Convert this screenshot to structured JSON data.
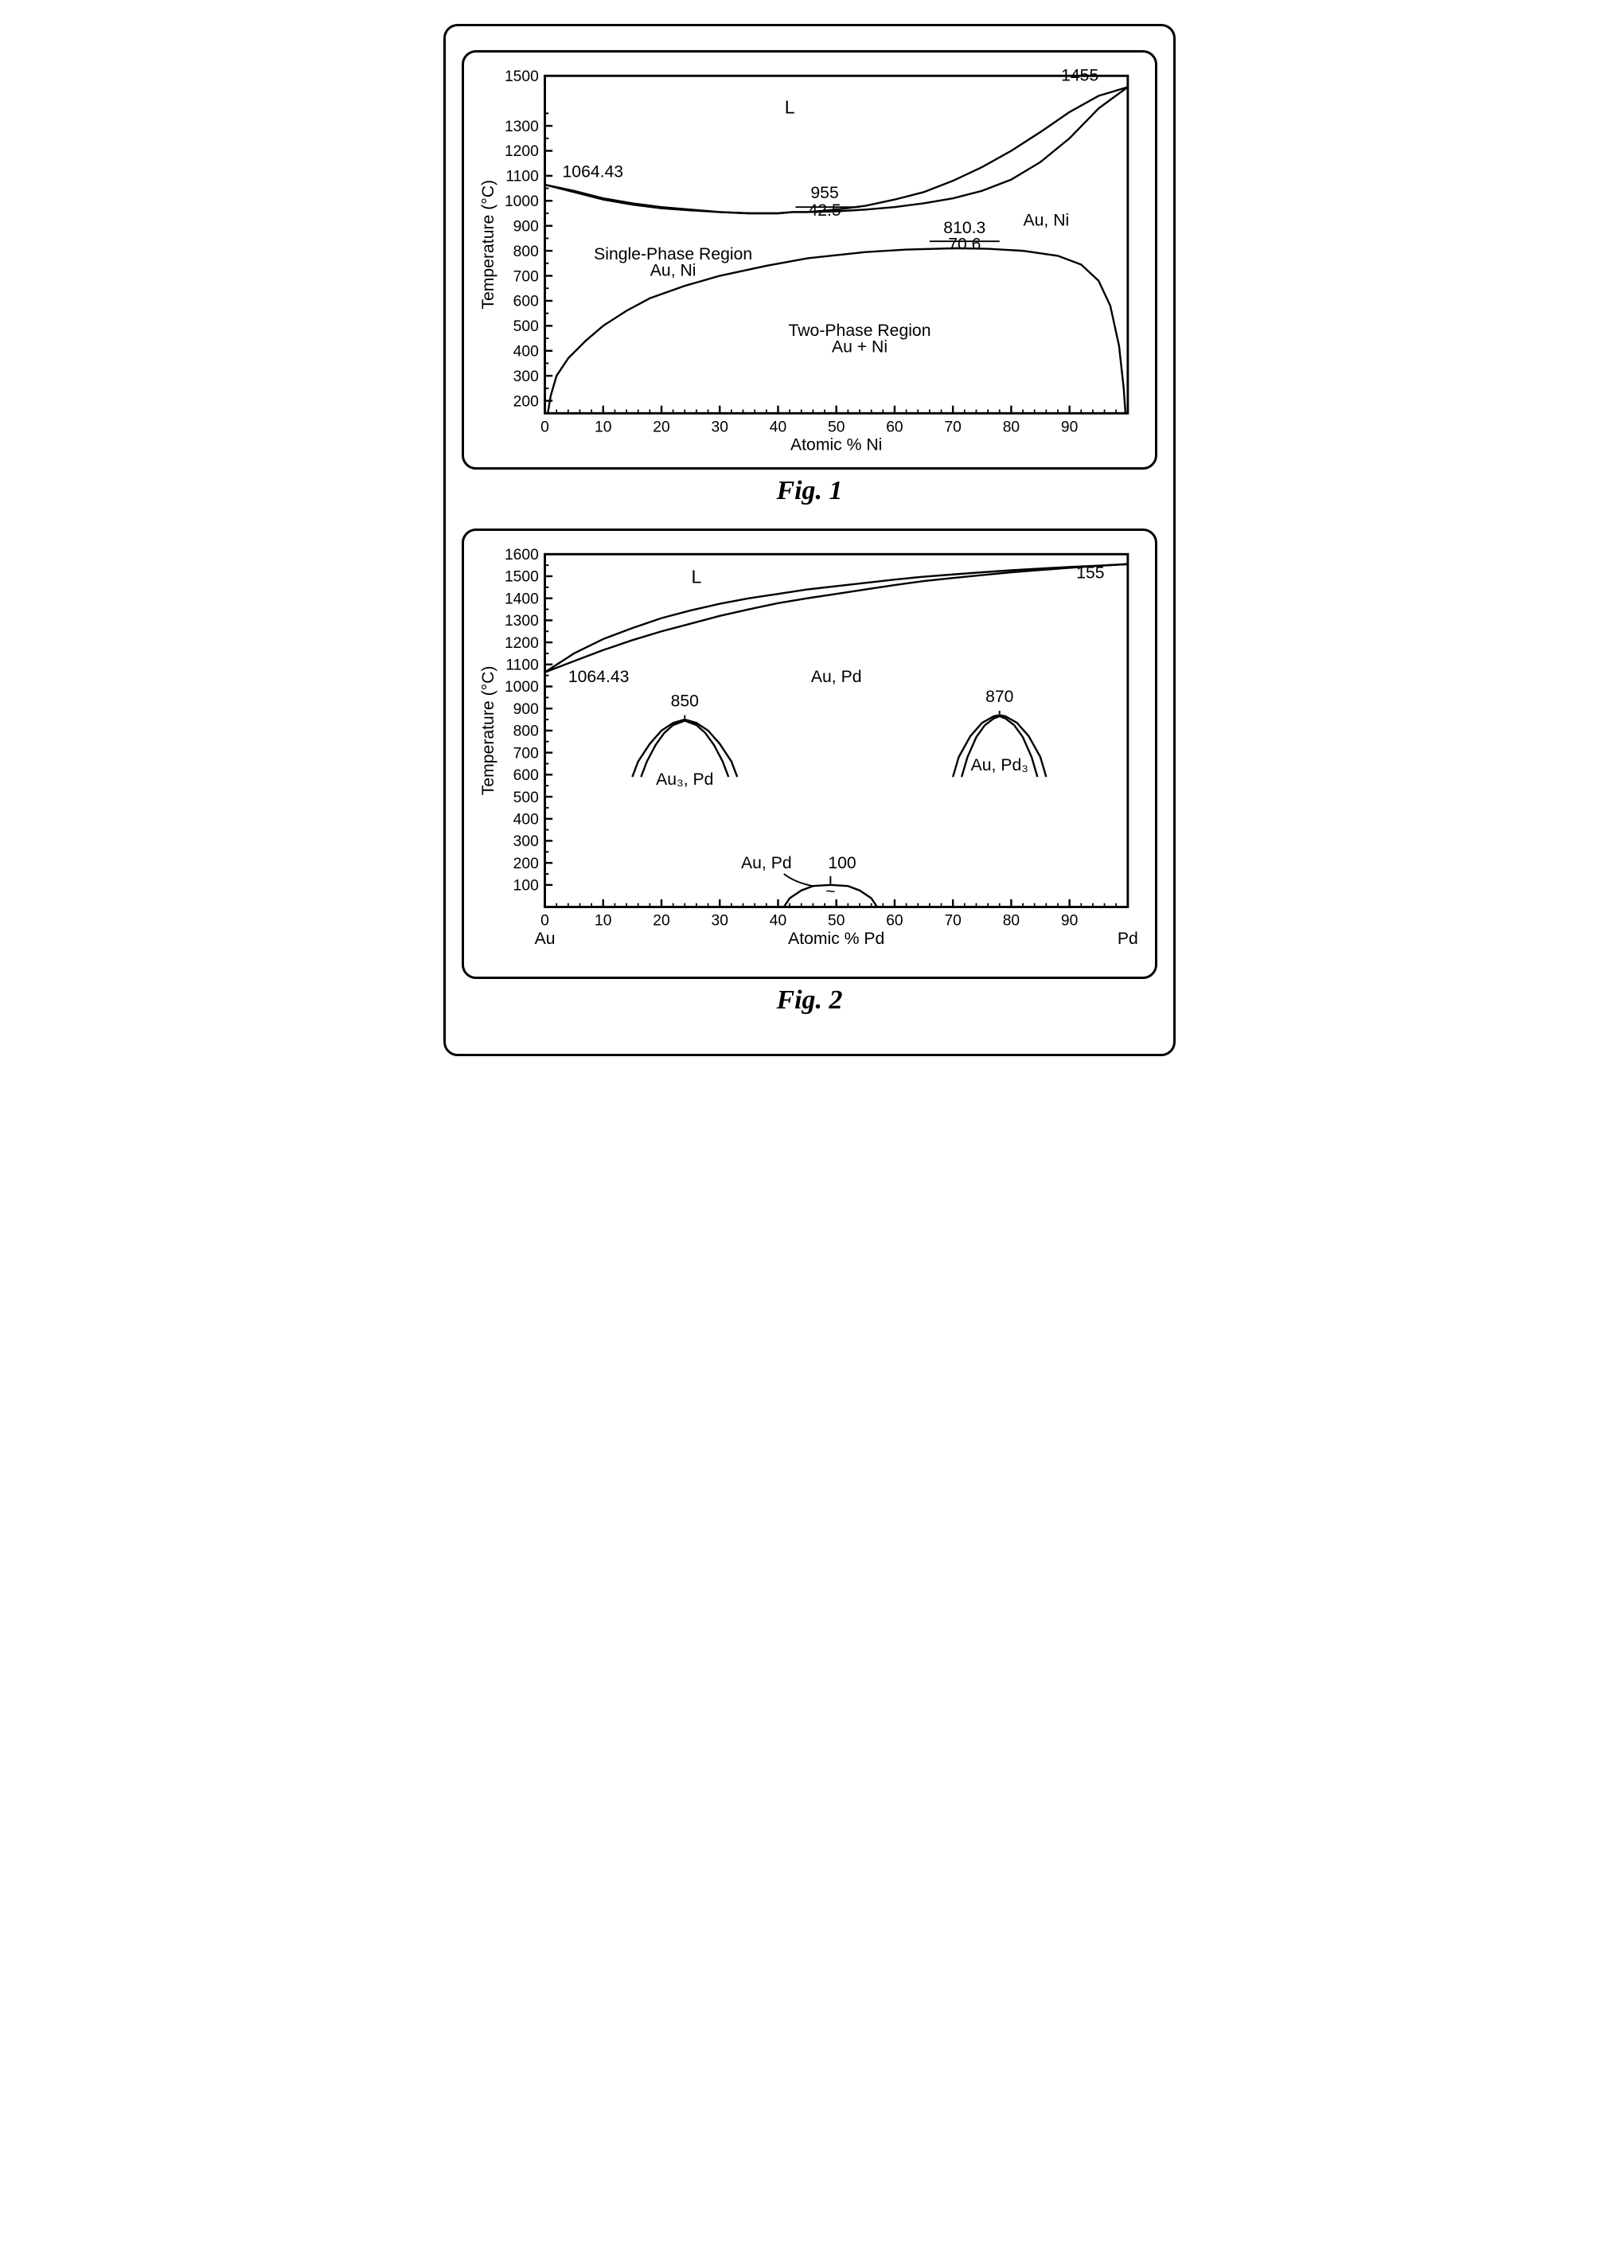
{
  "colors": {
    "stroke": "#000000",
    "background": "#ffffff",
    "line_width_axis": 3,
    "line_width_curve": 2.5,
    "tick_len_major": 10,
    "tick_len_minor": 5
  },
  "fig1": {
    "caption": "Fig. 1",
    "ylabel": "Temperature (°C)",
    "xlabel": "Atomic % Ni",
    "xlim": [
      0,
      100
    ],
    "ylim": [
      150,
      1500
    ],
    "xticks": [
      0,
      10,
      20,
      30,
      40,
      50,
      60,
      70,
      80,
      90
    ],
    "yticks": [
      200,
      300,
      400,
      500,
      600,
      700,
      800,
      900,
      1000,
      1100,
      1200,
      1300,
      1200,
      1500
    ],
    "yticks_labels": [
      "200",
      "300",
      "400",
      "500",
      "600",
      "700",
      "800",
      "900",
      "1000",
      "1100",
      "1300",
      "1200",
      "1500"
    ],
    "yticks_pos": [
      200,
      300,
      400,
      500,
      600,
      700,
      800,
      900,
      1000,
      1100,
      1300,
      1200,
      1500
    ],
    "annotations": {
      "L": "L",
      "t_left": "1064.43",
      "t_right": "1455",
      "t_mid_top": "955",
      "t_mid_bot": "42.5",
      "single_phase_1": "Single-Phase Region",
      "single_phase_2": "Au, Ni",
      "au_ni_right": "Au, Ni",
      "two_phase_1": "Two-Phase Region",
      "two_phase_2": "Au + Ni",
      "misc_top": "810.3",
      "misc_bot": "70.6"
    },
    "liquidus": [
      [
        0,
        1064.43
      ],
      [
        5,
        1040
      ],
      [
        10,
        1010
      ],
      [
        15,
        990
      ],
      [
        20,
        975
      ],
      [
        25,
        965
      ],
      [
        30,
        955
      ],
      [
        35,
        950
      ],
      [
        40,
        950
      ],
      [
        42.5,
        955
      ],
      [
        45,
        955
      ],
      [
        50,
        965
      ],
      [
        55,
        980
      ],
      [
        60,
        1005
      ],
      [
        65,
        1035
      ],
      [
        70,
        1080
      ],
      [
        75,
        1135
      ],
      [
        80,
        1200
      ],
      [
        85,
        1275
      ],
      [
        90,
        1355
      ],
      [
        95,
        1420
      ],
      [
        100,
        1455
      ]
    ],
    "solidus": [
      [
        0,
        1064.43
      ],
      [
        5,
        1035
      ],
      [
        10,
        1005
      ],
      [
        15,
        985
      ],
      [
        20,
        970
      ],
      [
        25,
        962
      ],
      [
        30,
        955
      ],
      [
        35,
        950
      ],
      [
        40,
        950
      ],
      [
        42.5,
        955
      ],
      [
        45,
        955
      ],
      [
        50,
        958
      ],
      [
        55,
        965
      ],
      [
        60,
        975
      ],
      [
        65,
        990
      ],
      [
        70,
        1010
      ],
      [
        75,
        1040
      ],
      [
        80,
        1085
      ],
      [
        85,
        1155
      ],
      [
        90,
        1250
      ],
      [
        95,
        1370
      ],
      [
        100,
        1455
      ]
    ],
    "miscibility": [
      [
        0.5,
        150
      ],
      [
        1,
        220
      ],
      [
        2,
        300
      ],
      [
        4,
        370
      ],
      [
        7,
        440
      ],
      [
        10,
        500
      ],
      [
        14,
        560
      ],
      [
        18,
        610
      ],
      [
        24,
        660
      ],
      [
        30,
        700
      ],
      [
        38,
        740
      ],
      [
        45,
        770
      ],
      [
        55,
        795
      ],
      [
        62,
        805
      ],
      [
        70.6,
        810.3
      ],
      [
        76,
        808
      ],
      [
        82,
        800
      ],
      [
        88,
        780
      ],
      [
        92,
        745
      ],
      [
        95,
        680
      ],
      [
        97,
        580
      ],
      [
        98.5,
        420
      ],
      [
        99.3,
        250
      ],
      [
        99.6,
        150
      ]
    ]
  },
  "fig2": {
    "caption": "Fig. 2",
    "ylabel": "Temperature (°C)",
    "xlabel": "Atomic % Pd",
    "x_left_label": "Au",
    "x_right_label": "Pd",
    "xlim": [
      0,
      100
    ],
    "ylim": [
      0,
      1600
    ],
    "xticks": [
      0,
      10,
      20,
      30,
      40,
      50,
      60,
      70,
      80,
      90
    ],
    "yticks": [
      100,
      200,
      300,
      400,
      500,
      600,
      700,
      800,
      900,
      1000,
      1100,
      1200,
      1300,
      1400,
      1500,
      1600
    ],
    "annotations": {
      "L": "L",
      "t_left": "1064.43",
      "t_right": "155",
      "au_pd_mid": "Au, Pd",
      "dome1_t": "850",
      "dome1_l": "Au₃, Pd",
      "dome2_t": "870",
      "dome2_l": "Au, Pd₃",
      "dome3_t": "100",
      "dome3_l": "Au, Pd",
      "tilde": "~"
    },
    "liquidus": [
      [
        0,
        1064.43
      ],
      [
        5,
        1150
      ],
      [
        10,
        1215
      ],
      [
        15,
        1265
      ],
      [
        20,
        1310
      ],
      [
        25,
        1345
      ],
      [
        30,
        1375
      ],
      [
        35,
        1400
      ],
      [
        40,
        1420
      ],
      [
        45,
        1440
      ],
      [
        50,
        1455
      ],
      [
        55,
        1470
      ],
      [
        60,
        1485
      ],
      [
        65,
        1498
      ],
      [
        70,
        1508
      ],
      [
        75,
        1518
      ],
      [
        80,
        1527
      ],
      [
        85,
        1535
      ],
      [
        90,
        1542
      ],
      [
        95,
        1548
      ],
      [
        100,
        1555
      ]
    ],
    "solidus": [
      [
        0,
        1064.43
      ],
      [
        5,
        1115
      ],
      [
        10,
        1165
      ],
      [
        15,
        1210
      ],
      [
        20,
        1250
      ],
      [
        25,
        1285
      ],
      [
        30,
        1320
      ],
      [
        35,
        1350
      ],
      [
        40,
        1378
      ],
      [
        45,
        1400
      ],
      [
        50,
        1420
      ],
      [
        55,
        1440
      ],
      [
        60,
        1460
      ],
      [
        65,
        1478
      ],
      [
        70,
        1492
      ],
      [
        75,
        1505
      ],
      [
        80,
        1518
      ],
      [
        85,
        1528
      ],
      [
        90,
        1538
      ],
      [
        95,
        1547
      ],
      [
        100,
        1555
      ]
    ],
    "dome1_outer": [
      [
        15,
        590
      ],
      [
        16,
        660
      ],
      [
        18,
        740
      ],
      [
        20,
        800
      ],
      [
        22,
        835
      ],
      [
        24,
        850
      ],
      [
        26,
        835
      ],
      [
        28,
        800
      ],
      [
        30,
        740
      ],
      [
        32,
        660
      ],
      [
        33,
        590
      ]
    ],
    "dome1_inner": [
      [
        16.5,
        590
      ],
      [
        17.5,
        660
      ],
      [
        19,
        735
      ],
      [
        20.5,
        790
      ],
      [
        22,
        825
      ],
      [
        24,
        845
      ],
      [
        26,
        825
      ],
      [
        27.5,
        790
      ],
      [
        29,
        735
      ],
      [
        30.5,
        660
      ],
      [
        31.5,
        590
      ]
    ],
    "dome2_outer": [
      [
        70,
        590
      ],
      [
        71,
        680
      ],
      [
        73,
        775
      ],
      [
        75,
        835
      ],
      [
        77,
        865
      ],
      [
        78,
        870
      ],
      [
        79,
        865
      ],
      [
        81,
        835
      ],
      [
        83,
        775
      ],
      [
        85,
        680
      ],
      [
        86,
        590
      ]
    ],
    "dome2_inner": [
      [
        71.5,
        590
      ],
      [
        72.5,
        680
      ],
      [
        74,
        770
      ],
      [
        75.5,
        825
      ],
      [
        77,
        855
      ],
      [
        78,
        865
      ],
      [
        79,
        855
      ],
      [
        80.5,
        825
      ],
      [
        82,
        770
      ],
      [
        83.5,
        680
      ],
      [
        84.5,
        590
      ]
    ],
    "dome3": [
      [
        41,
        0
      ],
      [
        42,
        40
      ],
      [
        44,
        75
      ],
      [
        46,
        95
      ],
      [
        49,
        100
      ],
      [
        52,
        95
      ],
      [
        54,
        75
      ],
      [
        56,
        40
      ],
      [
        57,
        0
      ]
    ]
  }
}
